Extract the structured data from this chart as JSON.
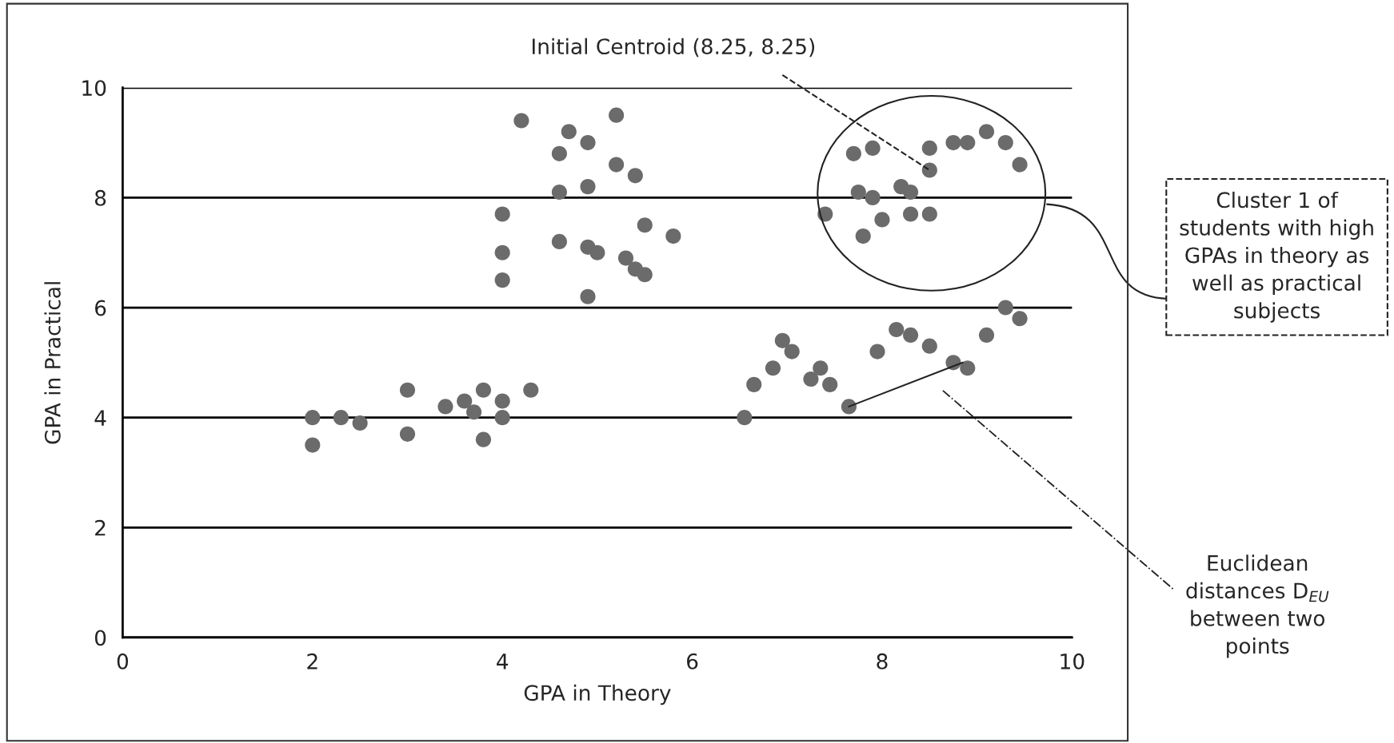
{
  "chart_data": {
    "type": "scatter",
    "xlabel": "GPA in Theory",
    "ylabel": "GPA in Practical",
    "xlim": [
      0,
      10
    ],
    "ylim": [
      0,
      10
    ],
    "xticks": [
      0,
      2,
      4,
      6,
      8,
      10
    ],
    "yticks": [
      0,
      2,
      4,
      6,
      8,
      10
    ],
    "grid": "y",
    "marker": "circle",
    "series": [
      {
        "color": "#6b6b6b",
        "x": [
          2.0,
          2.0,
          2.3,
          2.5,
          3.0,
          3.0,
          3.4,
          3.6,
          3.7,
          3.8,
          3.8,
          4.0,
          4.0,
          4.3,
          4.2,
          4.0,
          4.0,
          4.0,
          4.7,
          4.6,
          4.9,
          5.2,
          4.6,
          4.9,
          5.2,
          5.4,
          4.6,
          4.9,
          5.0,
          4.9,
          5.3,
          5.5,
          5.4,
          5.5,
          5.8,
          7.4,
          7.7,
          7.9,
          7.75,
          7.9,
          7.8,
          8.0,
          8.2,
          8.3,
          8.3,
          8.5,
          8.5,
          8.5,
          8.75,
          8.9,
          9.1,
          9.3,
          9.45,
          6.55,
          6.65,
          6.85,
          6.95,
          7.05,
          7.25,
          7.35,
          7.45,
          7.65,
          7.95,
          8.15,
          8.3,
          8.5,
          8.75,
          8.9,
          9.1,
          9.3,
          9.45
        ],
        "values": [
          4.0,
          3.5,
          4.0,
          3.9,
          4.5,
          3.7,
          4.2,
          4.3,
          4.1,
          4.5,
          3.6,
          4.3,
          4.0,
          4.5,
          9.4,
          7.7,
          7.0,
          6.5,
          9.2,
          8.8,
          9.0,
          9.5,
          8.1,
          8.2,
          8.6,
          8.4,
          7.2,
          7.1,
          7.0,
          6.2,
          6.9,
          7.5,
          6.7,
          6.6,
          7.3,
          7.7,
          8.8,
          8.9,
          8.1,
          8.0,
          7.3,
          7.6,
          8.2,
          8.1,
          7.7,
          7.7,
          8.5,
          8.9,
          9.0,
          9.0,
          9.2,
          9.0,
          8.6,
          4.0,
          4.6,
          4.9,
          5.4,
          5.2,
          4.7,
          4.9,
          4.6,
          4.2,
          5.2,
          5.6,
          5.5,
          5.3,
          5.0,
          4.9,
          5.5,
          6.0,
          5.8
        ]
      },
      {
        "type": "line",
        "marker": "none",
        "color": "#222222",
        "x": [
          7.65,
          8.85
        ],
        "values": [
          4.2,
          5.0
        ]
      }
    ],
    "annotations": [
      {
        "text": "Initial Centroid (8.25, 8.25)",
        "x": 8.5,
        "y": 8.5
      },
      "Cluster 1 of students with high GPAs in theory as well as practical subjects",
      "Euclidean distances D$_{EU}$ between two points"
    ]
  }
}
